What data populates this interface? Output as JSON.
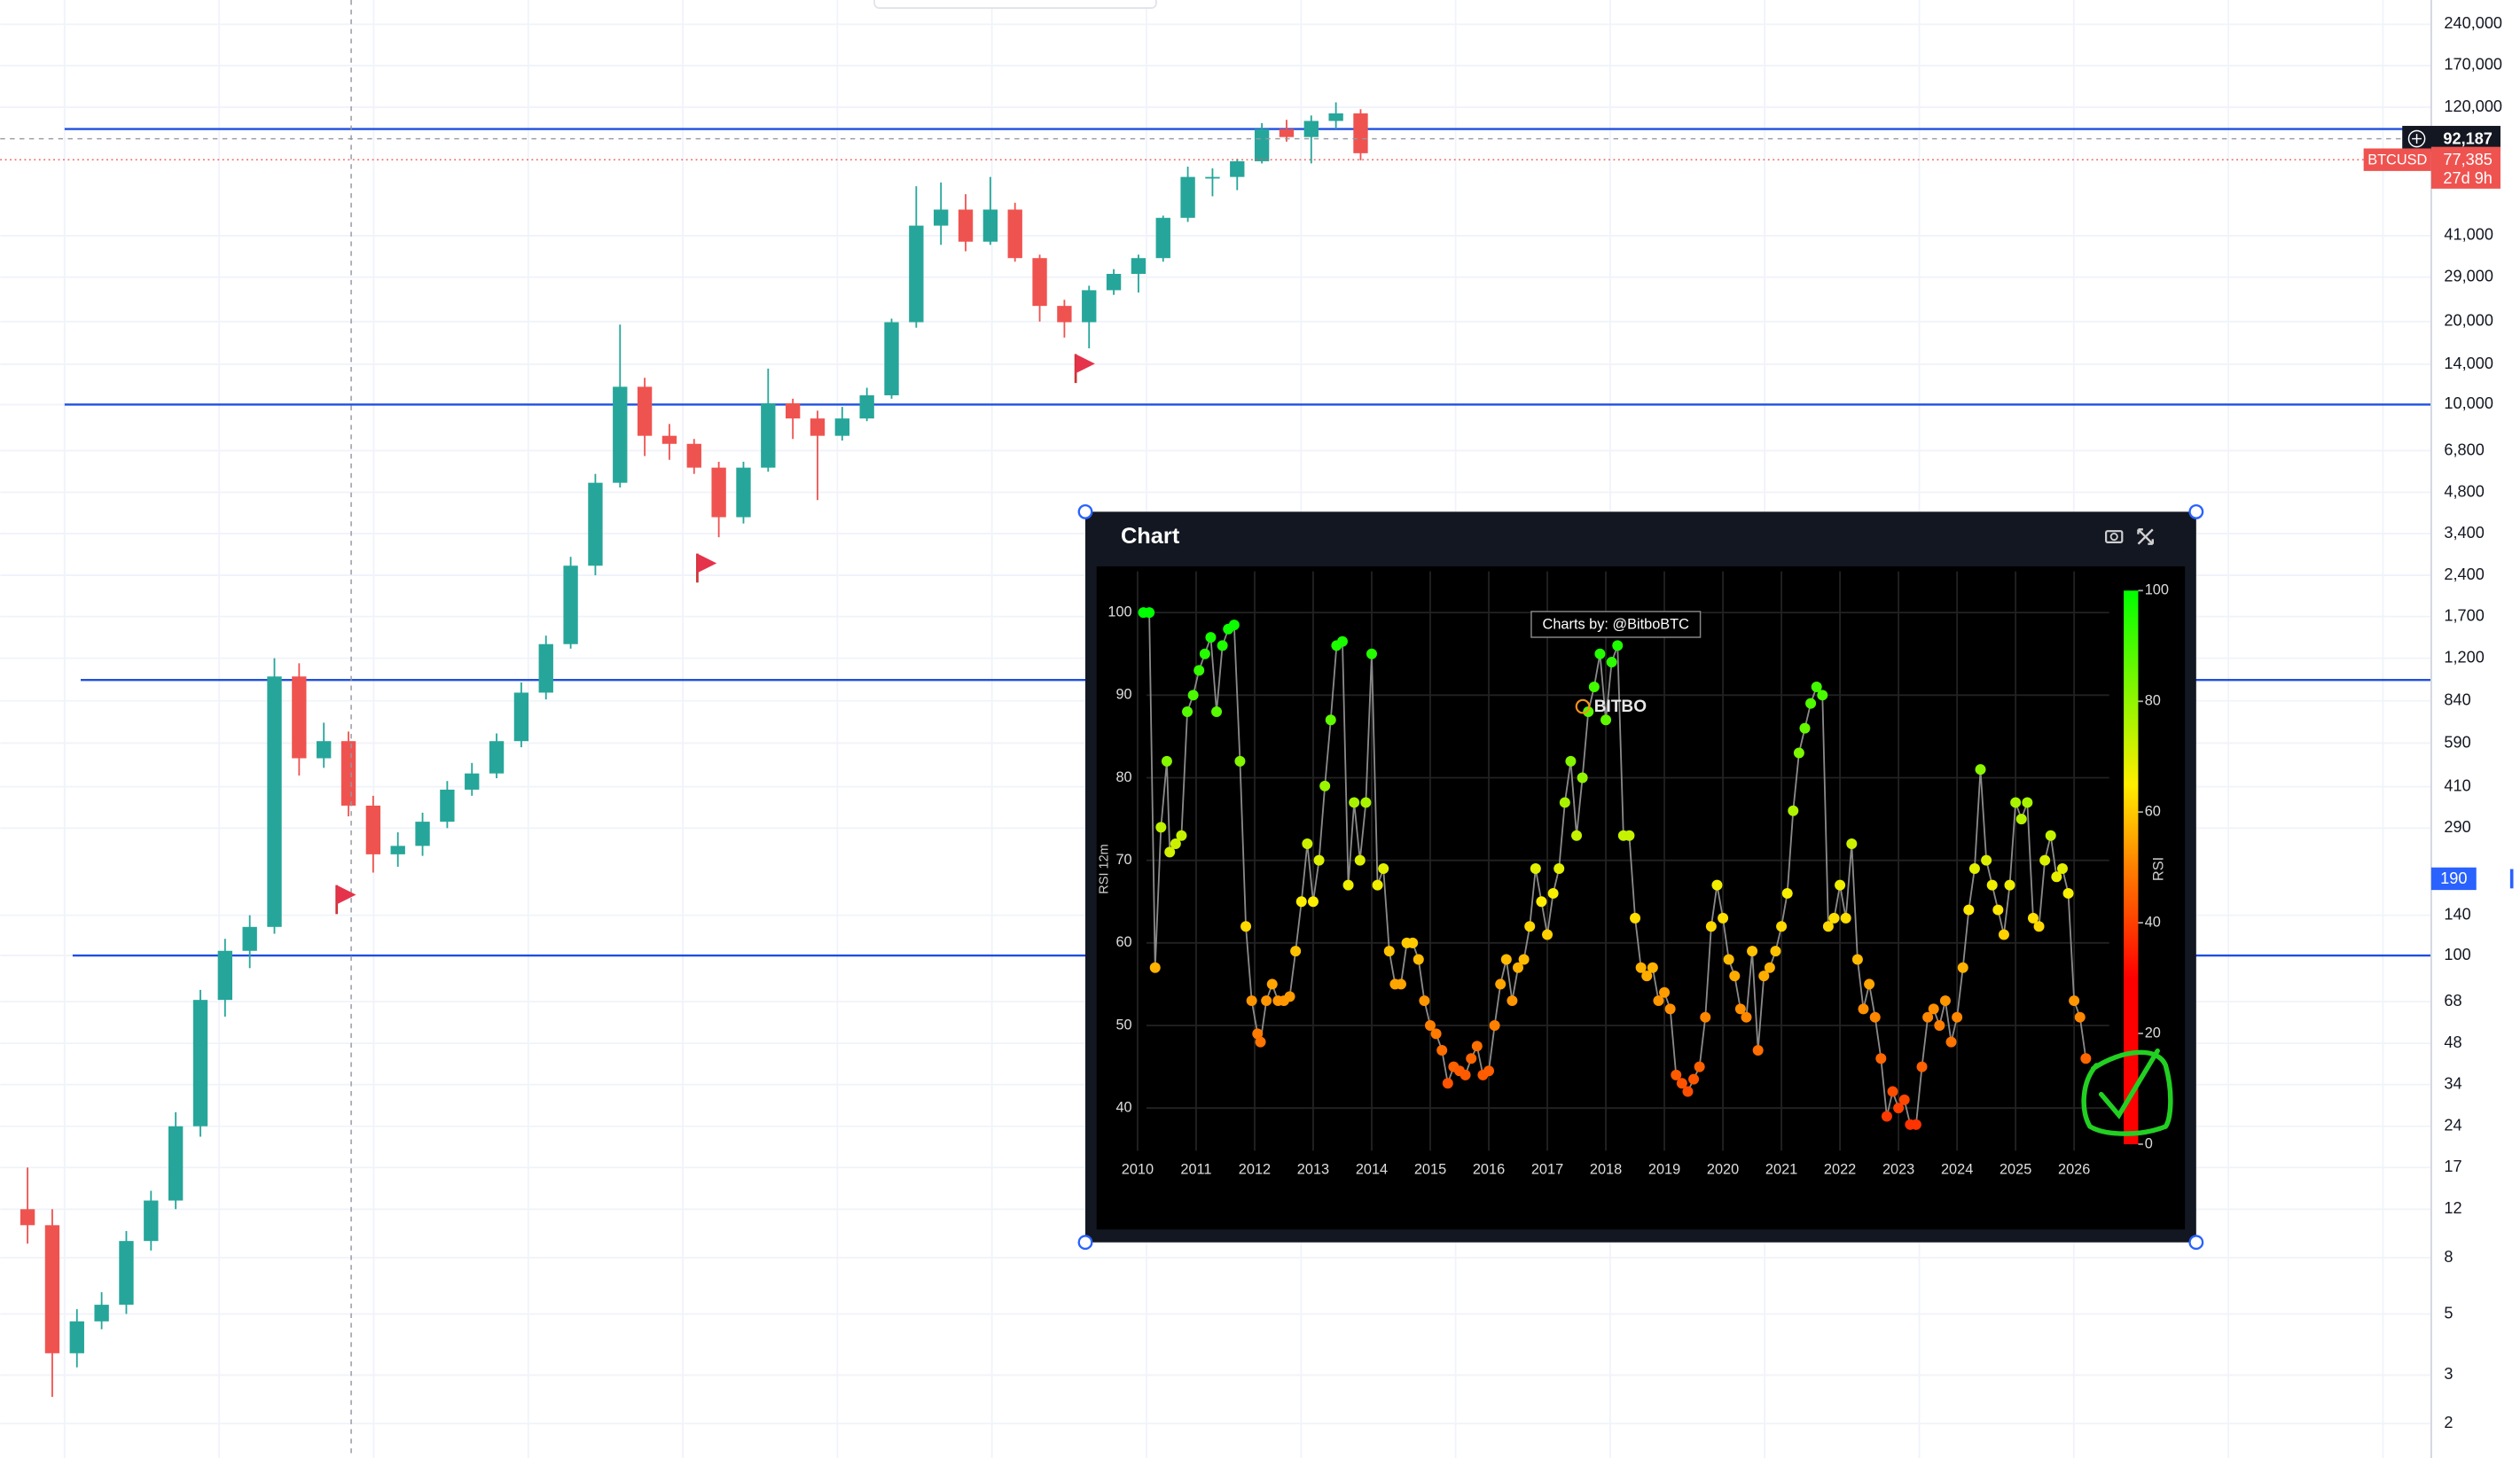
{
  "chart_data": [
    {
      "type": "candlestick",
      "symbol": "BTCUSD",
      "countdown": "27d 9h",
      "log_scale": true,
      "grid": true,
      "up_color": "#26a69a",
      "down_color": "#ef5350",
      "level_color": "#1f4fe0",
      "ylim": [
        1.5,
        294000
      ],
      "yticks": [
        {
          "value": 240000,
          "label": "240,000"
        },
        {
          "value": 170000,
          "label": "170,000"
        },
        {
          "value": 120000,
          "label": "120,000"
        },
        {
          "value": 41000,
          "label": "41,000"
        },
        {
          "value": 29000,
          "label": "29,000"
        },
        {
          "value": 20000,
          "label": "20,000"
        },
        {
          "value": 14000,
          "label": "14,000"
        },
        {
          "value": 10000,
          "label": "10,000"
        },
        {
          "value": 6800,
          "label": "6,800"
        },
        {
          "value": 4800,
          "label": "4,800"
        },
        {
          "value": 3400,
          "label": "3,400"
        },
        {
          "value": 2400,
          "label": "2,400"
        },
        {
          "value": 1700,
          "label": "1,700"
        },
        {
          "value": 1200,
          "label": "1,200"
        },
        840,
        590,
        410,
        290,
        140,
        100,
        68,
        48,
        34,
        24,
        17,
        12,
        8,
        5,
        3,
        2
      ],
      "levels": [
        100000,
        10000,
        1000,
        100
      ],
      "crosshair_price": {
        "value": 92187,
        "label": "92,187"
      },
      "last_price": {
        "value": 77385,
        "label": "77,385"
      },
      "marker_price": {
        "value": 190,
        "label": "190"
      },
      "open": [
        12,
        10.5,
        3.6,
        4.7,
        5.4,
        9.2,
        12.9,
        24,
        69,
        104,
        127,
        1030,
        520,
        600,
        350,
        233,
        250,
        306,
        400,
        458,
        600,
        900,
        1350,
        2600,
        5200,
        11600,
        7700,
        7200,
        5900,
        3900,
        5900,
        10100,
        8900,
        7700,
        8900,
        10800,
        19900,
        44600,
        51000,
        39000,
        51000,
        34000,
        22800,
        19900,
        26000,
        29800,
        34000,
        47600,
        67000,
        67000,
        76400,
        100000,
        93500,
        107000,
        114000
      ],
      "high": [
        17,
        12,
        5.2,
        6,
        10,
        14,
        27,
        75,
        115,
        140,
        1200,
        1150,
        700,
        650,
        380,
        280,
        330,
        430,
        500,
        640,
        980,
        1450,
        2800,
        5600,
        19500,
        12500,
        8500,
        7500,
        6200,
        6200,
        13500,
        10500,
        9500,
        9800,
        11500,
        20500,
        62000,
        64000,
        58000,
        67000,
        54000,
        35000,
        24000,
        27000,
        31000,
        35000,
        48500,
        73000,
        72000,
        78000,
        105000,
        108000,
        112000,
        125000,
        118000
      ],
      "low": [
        9,
        2.5,
        3.2,
        4.4,
        5,
        8.5,
        12,
        22,
        60,
        90,
        120,
        450,
        480,
        320,
        200,
        210,
        230,
        290,
        380,
        440,
        570,
        850,
        1300,
        2400,
        5000,
        6500,
        6300,
        5600,
        3300,
        3700,
        5700,
        7500,
        4500,
        7400,
        8700,
        10500,
        19000,
        38000,
        36000,
        38000,
        33000,
        20000,
        17500,
        16000,
        25000,
        25500,
        33000,
        46000,
        57000,
        60000,
        75000,
        90000,
        75000,
        100000,
        77000
      ],
      "close": [
        10.5,
        3.6,
        4.7,
        5.4,
        9.2,
        12.9,
        24,
        69,
        104,
        127,
        1030,
        520,
        600,
        350,
        233,
        250,
        306,
        400,
        458,
        600,
        900,
        1350,
        2600,
        5200,
        11600,
        7700,
        7200,
        5900,
        3900,
        5900,
        10100,
        8900,
        7700,
        8900,
        10800,
        19900,
        44600,
        51000,
        39000,
        51000,
        34000,
        22800,
        19900,
        26000,
        29800,
        34000,
        47600,
        67000,
        67000,
        76400,
        100000,
        93500,
        107000,
        114000,
        81700
      ]
    },
    {
      "type": "scatter",
      "title": "Chart",
      "ylabel": "RSI 12m",
      "annotation": "Charts by: @BitboBTC",
      "watermark": "BITBO",
      "colorbar_label": "RSI",
      "line_color": "#8a8a8a",
      "grid": true,
      "xlim": [
        2009.3,
        2026.6
      ],
      "ylim": [
        29,
        105
      ],
      "xticks": [
        2010,
        2011,
        2012,
        2013,
        2014,
        2015,
        2016,
        2017,
        2018,
        2019,
        2020,
        2021,
        2022,
        2023,
        2024,
        2025,
        2026
      ],
      "yticks": [
        40,
        50,
        60,
        70,
        80,
        90,
        100
      ],
      "clim": [
        0,
        100
      ],
      "cticks": [
        0,
        20,
        40,
        60,
        80,
        100
      ],
      "colorscale": [
        [
          0,
          "#ff0000"
        ],
        [
          30,
          "#ff0000"
        ],
        [
          50,
          "#ff8000"
        ],
        [
          65,
          "#ffee00"
        ],
        [
          100,
          "#00ff00"
        ]
      ],
      "x": [
        2010.1,
        2010.2,
        2010.3,
        2010.4,
        2010.5,
        2010.55,
        2010.65,
        2010.75,
        2010.85,
        2010.95,
        2011.05,
        2011.15,
        2011.25,
        2011.35,
        2011.45,
        2011.55,
        2011.65,
        2011.75,
        2011.85,
        2011.95,
        2012.05,
        2012.1,
        2012.2,
        2012.3,
        2012.4,
        2012.5,
        2012.6,
        2012.7,
        2012.8,
        2012.9,
        2013.0,
        2013.1,
        2013.2,
        2013.3,
        2013.4,
        2013.5,
        2013.6,
        2013.7,
        2013.8,
        2013.9,
        2014.0,
        2014.1,
        2014.2,
        2014.3,
        2014.4,
        2014.5,
        2014.6,
        2014.7,
        2014.8,
        2014.9,
        2015.0,
        2015.1,
        2015.2,
        2015.3,
        2015.4,
        2015.5,
        2015.6,
        2015.7,
        2015.8,
        2015.9,
        2016.0,
        2016.1,
        2016.2,
        2016.3,
        2016.4,
        2016.5,
        2016.6,
        2016.7,
        2016.8,
        2016.9,
        2017.0,
        2017.1,
        2017.2,
        2017.3,
        2017.4,
        2017.5,
        2017.6,
        2017.7,
        2017.8,
        2017.9,
        2018.0,
        2018.1,
        2018.2,
        2018.3,
        2018.4,
        2018.5,
        2018.6,
        2018.7,
        2018.8,
        2018.9,
        2019.0,
        2019.1,
        2019.2,
        2019.3,
        2019.4,
        2019.5,
        2019.6,
        2019.7,
        2019.8,
        2019.9,
        2020.0,
        2020.1,
        2020.2,
        2020.3,
        2020.4,
        2020.5,
        2020.6,
        2020.7,
        2020.8,
        2020.9,
        2021.0,
        2021.1,
        2021.2,
        2021.3,
        2021.4,
        2021.5,
        2021.6,
        2021.7,
        2021.8,
        2021.9,
        2022.0,
        2022.1,
        2022.2,
        2022.3,
        2022.4,
        2022.5,
        2022.6,
        2022.7,
        2022.8,
        2022.9,
        2023.0,
        2023.1,
        2023.2,
        2023.3,
        2023.4,
        2023.5,
        2023.6,
        2023.7,
        2023.8,
        2023.9,
        2024.0,
        2024.1,
        2024.2,
        2024.3,
        2024.4,
        2024.5,
        2024.6,
        2024.7,
        2024.8,
        2024.9,
        2025.0,
        2025.1,
        2025.2,
        2025.3,
        2025.4,
        2025.5,
        2025.6,
        2025.7,
        2025.8,
        2025.9,
        2026.0,
        2026.1,
        2026.2
      ],
      "y": [
        100,
        100,
        57,
        74,
        82,
        71,
        72,
        73,
        88,
        90,
        93,
        95,
        97,
        88,
        96,
        98,
        98.5,
        82,
        62,
        53,
        49,
        48,
        53,
        55,
        53,
        53,
        53.5,
        59,
        65,
        72,
        65,
        70,
        79,
        87,
        96,
        96.5,
        67,
        77,
        70,
        77,
        95,
        67,
        69,
        59,
        55,
        55,
        60,
        60,
        58,
        53,
        50,
        49,
        47,
        43,
        45,
        44.5,
        44,
        46,
        47.5,
        44,
        44.5,
        50,
        55,
        58,
        53,
        57,
        58,
        62,
        69,
        65,
        61,
        66,
        69,
        77,
        82,
        73,
        80,
        88,
        91,
        95,
        87,
        94,
        96,
        73,
        73,
        63,
        57,
        56,
        57,
        53,
        54,
        52,
        44,
        43,
        42,
        43.5,
        45,
        51,
        62,
        67,
        63,
        58,
        56,
        52,
        51,
        59,
        47,
        56,
        57,
        59,
        62,
        66,
        76,
        83,
        86,
        89,
        91,
        90,
        62,
        63,
        67,
        63,
        72,
        58,
        52,
        55,
        51,
        46,
        39,
        42,
        40,
        41,
        38,
        38,
        45,
        51,
        52,
        50,
        53,
        48,
        51,
        57,
        64,
        69,
        81,
        70,
        67,
        64,
        61,
        67,
        77,
        75,
        77,
        63,
        62,
        70,
        73,
        68,
        69,
        66,
        53,
        51,
        46
      ]
    }
  ]
}
